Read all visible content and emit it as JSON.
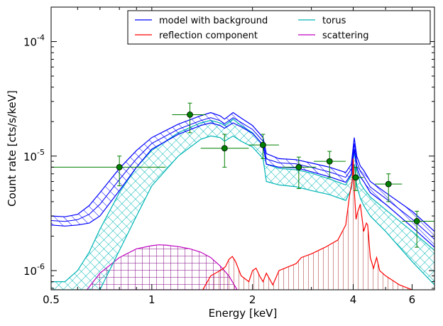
{
  "chart_data": {
    "type": "line",
    "xlabel": "Energy [keV]",
    "ylabel": "Count rate [cts/s/keV]",
    "x_scale": "log",
    "y_scale": "log",
    "xlim": [
      0.5,
      7.0
    ],
    "ylim": [
      6.8e-07,
      0.0002
    ],
    "x_ticks": [
      {
        "value": 0.5,
        "label": "0.5"
      },
      {
        "value": 1,
        "label": "1"
      },
      {
        "value": 2,
        "label": "2"
      },
      {
        "value": 4,
        "label": "4"
      },
      {
        "value": 6,
        "label": "6"
      }
    ],
    "y_ticks": [
      {
        "value": 1e-06,
        "base": "10",
        "exp": "-6"
      },
      {
        "value": 1e-05,
        "base": "10",
        "exp": "-5"
      },
      {
        "value": 0.0001,
        "base": "10",
        "exp": "-4"
      }
    ],
    "legend_position": "top-right",
    "grid": false,
    "series": [
      {
        "name": "model with background",
        "color": "#0000ff",
        "hatch": "diagonal",
        "x": [
          0.5,
          0.55,
          0.6,
          0.65,
          0.7,
          0.8,
          0.9,
          1.0,
          1.2,
          1.4,
          1.5,
          1.6,
          1.65,
          1.75,
          1.85,
          2.0,
          2.15,
          2.2,
          2.4,
          2.7,
          3.0,
          3.4,
          3.8,
          3.95,
          4.03,
          4.1,
          4.2,
          4.3,
          4.5,
          5.0,
          6.0,
          7.0
        ],
        "upper": [
          3e-06,
          2.95e-06,
          3.1e-06,
          3.7e-06,
          4.8e-06,
          7.8e-06,
          1.12e-05,
          1.45e-05,
          1.9e-05,
          2.25e-05,
          2.4e-05,
          2.25e-05,
          2.1e-05,
          2.4e-05,
          2.15e-05,
          1.85e-05,
          1.45e-05,
          1.05e-05,
          9.5e-06,
          9.3e-06,
          8.7e-06,
          8e-06,
          7.2e-06,
          8.5e-06,
          1.45e-05,
          1e-05,
          8.2e-06,
          7.5e-06,
          6e-06,
          4.8e-06,
          3.3e-06,
          2.2e-06
        ],
        "lower": [
          2.5e-06,
          2.45e-06,
          2.5e-06,
          2.6e-06,
          3e-06,
          5e-06,
          8e-06,
          1.15e-05,
          1.55e-05,
          1.85e-05,
          1.95e-05,
          1.85e-05,
          1.75e-05,
          1.95e-05,
          1.8e-05,
          1.58e-05,
          1.25e-05,
          8.5e-06,
          8e-06,
          7.9e-06,
          7.3e-06,
          6.6e-06,
          5.9e-06,
          7e-06,
          1.15e-05,
          8e-06,
          6.6e-06,
          6e-06,
          4.8e-06,
          3.8e-06,
          2.4e-06,
          1.6e-06
        ]
      },
      {
        "name": "torus",
        "color": "#00b5b5",
        "hatch": "cross",
        "x": [
          0.5,
          0.55,
          0.6,
          0.65,
          0.7,
          0.8,
          0.9,
          1.0,
          1.2,
          1.4,
          1.5,
          1.6,
          1.65,
          1.75,
          1.85,
          2.0,
          2.15,
          2.2,
          2.4,
          2.7,
          3.0,
          3.4,
          3.8,
          3.95,
          4.03,
          4.1,
          4.2,
          4.3,
          4.5,
          5.0,
          6.0,
          7.0
        ],
        "upper": [
          8e-07,
          8e-07,
          1e-06,
          1.45e-06,
          2.3e-06,
          4.8e-06,
          8e-06,
          1.12e-05,
          1.6e-05,
          1.95e-05,
          2.05e-05,
          1.95e-05,
          1.85e-05,
          2.1e-05,
          1.85e-05,
          1.6e-05,
          1.25e-05,
          8.5e-06,
          7.8e-06,
          7.6e-06,
          7.1e-06,
          6.3e-06,
          5.6e-06,
          6.8e-06,
          1.1e-05,
          7.5e-06,
          5.8e-06,
          5.2e-06,
          4.4e-06,
          3.4e-06,
          2.2e-06,
          1.5e-06
        ],
        "lower": [
          6.8e-07,
          6.8e-07,
          6.8e-07,
          6.8e-07,
          6.8e-07,
          1.5e-06,
          3e-06,
          5.5e-06,
          1e-05,
          1.4e-05,
          1.5e-05,
          1.45e-05,
          1.35e-05,
          1.5e-05,
          1.35e-05,
          1.2e-05,
          9.5e-06,
          6e-06,
          5.6e-06,
          5.4e-06,
          5e-06,
          4.6e-06,
          4.1e-06,
          5.2e-06,
          8.5e-06,
          5.5e-06,
          4.3e-06,
          3.7e-06,
          3e-06,
          2.2e-06,
          1.2e-06,
          7.5e-07
        ]
      },
      {
        "name": "reflection component",
        "color": "#ff0000",
        "hatch": "vertical",
        "x": [
          1.42,
          1.5,
          1.6,
          1.66,
          1.7,
          1.74,
          1.78,
          1.85,
          1.95,
          2.0,
          2.05,
          2.1,
          2.15,
          2.2,
          2.3,
          2.4,
          2.5,
          2.6,
          2.7,
          2.8,
          3.0,
          3.3,
          3.6,
          3.8,
          3.9,
          3.97,
          4.0,
          4.04,
          4.08,
          4.12,
          4.2,
          4.3,
          4.38,
          4.42,
          4.5,
          4.6,
          4.7,
          4.8,
          5.0,
          5.5,
          6.0
        ],
        "upper": [
          6.8e-07,
          9e-07,
          1e-06,
          1.08e-06,
          1.25e-06,
          1.33e-06,
          1.2e-06,
          9e-07,
          8e-07,
          1e-06,
          1.05e-06,
          9e-07,
          8e-07,
          9.5e-07,
          7.5e-07,
          1e-06,
          1.05e-06,
          1.1e-06,
          1.15e-06,
          1.3e-06,
          1.4e-06,
          1.6e-06,
          1.85e-06,
          2.5e-06,
          4.5e-06,
          6e-06,
          9.5e-06,
          4.5e-06,
          2.8e-06,
          3.2e-06,
          3.8e-06,
          2.2e-06,
          2.6e-06,
          2.5e-06,
          1.3e-06,
          1.05e-06,
          1.3e-06,
          1e-06,
          9e-07,
          7.5e-07,
          6.8e-07
        ],
        "lower": []
      },
      {
        "name": "scattering",
        "color": "#c000c0",
        "hatch": "grid",
        "x": [
          0.64,
          0.7,
          0.8,
          0.9,
          1.0,
          1.05,
          1.1,
          1.2,
          1.3,
          1.4,
          1.5,
          1.6,
          1.7,
          1.8
        ],
        "upper": [
          6.8e-07,
          9.5e-07,
          1.3e-06,
          1.55e-06,
          1.65e-06,
          1.68e-06,
          1.67e-06,
          1.62e-06,
          1.55e-06,
          1.45e-06,
          1.3e-06,
          1.1e-06,
          9e-07,
          6.8e-07
        ],
        "lower": [
          6.8e-07,
          6.8e-07,
          6.8e-07,
          6.8e-07,
          6.8e-07,
          6.8e-07,
          6.8e-07,
          6.8e-07,
          6.8e-07,
          6.8e-07,
          6.8e-07,
          6.8e-07,
          6.8e-07,
          6.8e-07
        ]
      }
    ],
    "data_points": {
      "color": "#008000",
      "points": [
        {
          "x": 0.8,
          "y": 8e-06,
          "xlo": 0.5,
          "xhi": 1.1,
          "ylo": 5.5e-06,
          "yhi": 1e-05
        },
        {
          "x": 1.3,
          "y": 2.3e-05,
          "xlo": 1.15,
          "xhi": 1.45,
          "ylo": 1.6e-05,
          "yhi": 2.9e-05
        },
        {
          "x": 1.65,
          "y": 1.17e-05,
          "xlo": 1.4,
          "xhi": 1.95,
          "ylo": 8e-06,
          "yhi": 1.55e-05
        },
        {
          "x": 2.15,
          "y": 1.25e-05,
          "xlo": 1.95,
          "xhi": 2.4,
          "ylo": 9.5e-06,
          "yhi": 1.55e-05
        },
        {
          "x": 2.75,
          "y": 8e-06,
          "xlo": 2.45,
          "xhi": 3.1,
          "ylo": 5.2e-06,
          "yhi": 9.8e-06
        },
        {
          "x": 3.4,
          "y": 9e-06,
          "xlo": 3.05,
          "xhi": 3.8,
          "ylo": 6.5e-06,
          "yhi": 1.1e-05
        },
        {
          "x": 4.07,
          "y": 6.5e-06,
          "xlo": 3.95,
          "xhi": 4.3,
          "ylo": 5e-06,
          "yhi": 8e-06
        },
        {
          "x": 5.1,
          "y": 5.7e-06,
          "xlo": 4.65,
          "xhi": 5.6,
          "ylo": 4e-06,
          "yhi": 7e-06
        },
        {
          "x": 6.2,
          "y": 2.7e-06,
          "xlo": 5.6,
          "xhi": 7.0,
          "ylo": 1.6e-06,
          "yhi": 3.3e-06
        }
      ]
    }
  }
}
